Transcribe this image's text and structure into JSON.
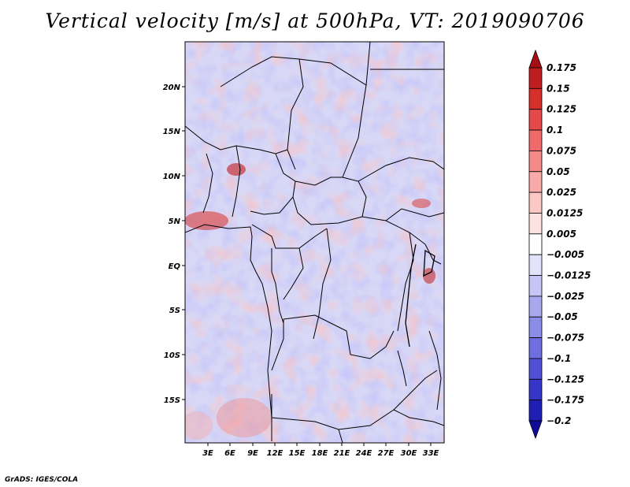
{
  "title": "Vertical velocity [m/s] at 500hPa, VT: 2019090706",
  "credit": "GrADS: IGES/COLA",
  "map": {
    "lat_ticks": [
      "20N",
      "15N",
      "10N",
      "5N",
      "EQ",
      "5S",
      "10S",
      "15S"
    ],
    "lon_ticks": [
      "3E",
      "6E",
      "9E",
      "12E",
      "15E",
      "18E",
      "21E",
      "24E",
      "27E",
      "30E",
      "33E"
    ]
  },
  "colorbar": {
    "levels": [
      "0.175",
      "0.15",
      "0.125",
      "0.1",
      "0.075",
      "0.05",
      "0.025",
      "0.0125",
      "0.005",
      "-0.005",
      "-0.0125",
      "-0.025",
      "-0.05",
      "-0.075",
      "-0.1",
      "-0.125",
      "-0.175",
      "-0.2"
    ],
    "colors": [
      "#a50f15",
      "#c01d20",
      "#d7302b",
      "#e5484a",
      "#ef6b6b",
      "#f48b88",
      "#f8aaa8",
      "#fbc8c5",
      "#fde3e1",
      "#ffffff",
      "#e2e2fb",
      "#c5c5f6",
      "#a8a8ef",
      "#8b8be8",
      "#6e6ee0",
      "#5050d6",
      "#3535c8",
      "#1f1fb5",
      "#100a9a"
    ]
  }
}
